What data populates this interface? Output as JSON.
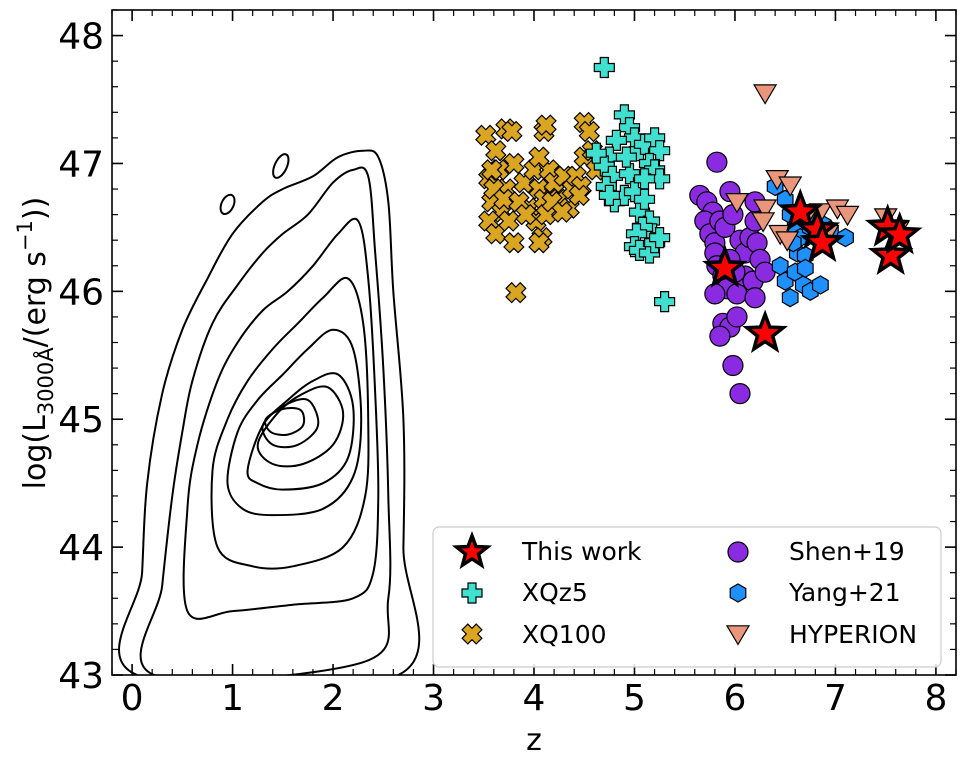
{
  "chart_data": {
    "type": "scatter",
    "xlabel": "z",
    "ylabel": {
      "prefix": "log(L",
      "sub": "3000Å",
      "middle": "/(erg s",
      "sup": "−1",
      "suffix": "))"
    },
    "xlim": [
      -0.2,
      8.2
    ],
    "ylim": [
      43,
      48.2
    ],
    "xticks": [
      0,
      1,
      2,
      3,
      4,
      5,
      6,
      7,
      8
    ],
    "yticks": [
      43,
      44,
      45,
      46,
      47,
      48
    ],
    "grid": false,
    "legend_position": "lower-right",
    "legend_columns": 2,
    "legend": [
      {
        "label": "This work",
        "marker": "star",
        "color": "#ff0000"
      },
      {
        "label": "XQz5",
        "marker": "plus",
        "color": "#40e0d0"
      },
      {
        "label": "XQ100",
        "marker": "x",
        "color": "#daa520"
      },
      {
        "label": "Shen+19",
        "marker": "circle",
        "color": "#8a2be2"
      },
      {
        "label": "Yang+21",
        "marker": "hexagon",
        "color": "#1e90ff"
      },
      {
        "label": "HYPERION",
        "marker": "triangle-down",
        "color": "#e9967a"
      }
    ],
    "density_contours": {
      "description": "low-z quasar density contours",
      "levels": [
        [
          [
            0.05,
            43.0
          ],
          [
            0.1,
            43.8
          ],
          [
            0.15,
            44.5
          ],
          [
            0.3,
            45.2
          ],
          [
            0.5,
            45.7
          ],
          [
            0.75,
            46.1
          ],
          [
            1.0,
            46.45
          ],
          [
            1.3,
            46.7
          ],
          [
            1.5,
            46.8
          ],
          [
            1.8,
            46.9
          ],
          [
            2.05,
            47.05
          ],
          [
            2.3,
            47.1
          ],
          [
            2.45,
            47.05
          ],
          [
            2.55,
            46.7
          ],
          [
            2.6,
            46.0
          ],
          [
            2.7,
            45.0
          ],
          [
            2.7,
            44.0
          ],
          [
            2.65,
            43.0
          ]
        ],
        [
          [
            0.22,
            43.0
          ],
          [
            0.3,
            43.7
          ],
          [
            0.4,
            44.4
          ],
          [
            0.5,
            44.9
          ],
          [
            0.6,
            45.3
          ],
          [
            0.8,
            45.75
          ],
          [
            1.05,
            46.05
          ],
          [
            1.3,
            46.3
          ],
          [
            1.5,
            46.45
          ],
          [
            1.75,
            46.6
          ],
          [
            2.0,
            46.85
          ],
          [
            2.2,
            46.95
          ],
          [
            2.35,
            46.9
          ],
          [
            2.42,
            46.3
          ],
          [
            2.5,
            45.4
          ],
          [
            2.55,
            44.4
          ],
          [
            2.55,
            43.6
          ],
          [
            2.3,
            43.1
          ]
        ],
        [
          [
            0.55,
            43.5
          ],
          [
            0.55,
            44.3
          ],
          [
            0.65,
            44.8
          ],
          [
            0.85,
            45.3
          ],
          [
            1.05,
            45.6
          ],
          [
            1.3,
            45.85
          ],
          [
            1.55,
            46.0
          ],
          [
            1.8,
            46.2
          ],
          [
            2.05,
            46.45
          ],
          [
            2.25,
            46.55
          ],
          [
            2.35,
            46.1
          ],
          [
            2.42,
            45.2
          ],
          [
            2.45,
            44.4
          ],
          [
            2.4,
            43.8
          ],
          [
            2.2,
            43.6
          ],
          [
            1.6,
            43.55
          ],
          [
            1.0,
            43.5
          ]
        ],
        [
          [
            0.85,
            44.0
          ],
          [
            0.8,
            44.6
          ],
          [
            0.95,
            45.0
          ],
          [
            1.15,
            45.3
          ],
          [
            1.4,
            45.55
          ],
          [
            1.65,
            45.75
          ],
          [
            1.9,
            45.95
          ],
          [
            2.15,
            46.1
          ],
          [
            2.3,
            45.75
          ],
          [
            2.35,
            45.0
          ],
          [
            2.32,
            44.4
          ],
          [
            2.1,
            44.0
          ],
          [
            1.6,
            43.85
          ],
          [
            1.2,
            43.85
          ]
        ],
        [
          [
            0.95,
            44.5
          ],
          [
            1.05,
            44.9
          ],
          [
            1.25,
            45.15
          ],
          [
            1.5,
            45.35
          ],
          [
            1.75,
            45.55
          ],
          [
            2.0,
            45.7
          ],
          [
            2.2,
            45.55
          ],
          [
            2.28,
            45.0
          ],
          [
            2.2,
            44.55
          ],
          [
            1.9,
            44.3
          ],
          [
            1.4,
            44.25
          ],
          [
            1.1,
            44.3
          ]
        ],
        [
          [
            1.15,
            44.6
          ],
          [
            1.3,
            44.95
          ],
          [
            1.55,
            45.15
          ],
          [
            1.8,
            45.3
          ],
          [
            2.05,
            45.35
          ],
          [
            2.2,
            45.1
          ],
          [
            2.15,
            44.7
          ],
          [
            1.9,
            44.5
          ],
          [
            1.5,
            44.45
          ],
          [
            1.25,
            44.5
          ]
        ],
        [
          [
            1.25,
            44.8
          ],
          [
            1.45,
            45.05
          ],
          [
            1.7,
            45.2
          ],
          [
            1.95,
            45.25
          ],
          [
            2.1,
            45.05
          ],
          [
            2.0,
            44.8
          ],
          [
            1.7,
            44.65
          ],
          [
            1.4,
            44.65
          ]
        ],
        [
          [
            1.3,
            44.95
          ],
          [
            1.5,
            45.1
          ],
          [
            1.75,
            45.15
          ],
          [
            1.85,
            44.95
          ],
          [
            1.65,
            44.8
          ],
          [
            1.4,
            44.8
          ]
        ],
        [
          [
            1.33,
            45.0
          ],
          [
            1.5,
            45.08
          ],
          [
            1.68,
            45.07
          ],
          [
            1.7,
            44.95
          ],
          [
            1.55,
            44.88
          ],
          [
            1.38,
            44.9
          ]
        ]
      ],
      "islands": [
        {
          "x": 0.95,
          "y": 46.68,
          "rx": 0.06,
          "ry": 0.08
        },
        {
          "x": 1.48,
          "y": 46.98,
          "rx": 0.06,
          "ry": 0.1
        }
      ]
    },
    "series": [
      {
        "name": "XQ100",
        "marker": "x",
        "color": "#daa520",
        "points": [
          [
            3.52,
            47.22
          ],
          [
            3.62,
            47.1
          ],
          [
            3.72,
            47.27
          ],
          [
            3.78,
            47.25
          ],
          [
            3.8,
            47.0
          ],
          [
            3.55,
            46.88
          ],
          [
            3.65,
            46.95
          ],
          [
            3.72,
            46.8
          ],
          [
            3.58,
            46.7
          ],
          [
            3.68,
            46.62
          ],
          [
            3.55,
            46.55
          ],
          [
            3.62,
            46.45
          ],
          [
            3.75,
            46.55
          ],
          [
            3.8,
            46.38
          ],
          [
            3.9,
            46.85
          ],
          [
            3.95,
            46.65
          ],
          [
            4.0,
            46.95
          ],
          [
            4.05,
            46.8
          ],
          [
            4.1,
            46.72
          ],
          [
            4.02,
            46.55
          ],
          [
            4.08,
            46.42
          ],
          [
            4.12,
            46.6
          ],
          [
            4.15,
            46.95
          ],
          [
            4.2,
            46.85
          ],
          [
            4.1,
            47.25
          ],
          [
            4.12,
            47.3
          ],
          [
            4.25,
            46.72
          ],
          [
            4.3,
            46.9
          ],
          [
            4.35,
            46.65
          ],
          [
            4.38,
            46.8
          ],
          [
            4.42,
            46.9
          ],
          [
            4.47,
            46.82
          ],
          [
            4.5,
            47.05
          ],
          [
            4.5,
            47.32
          ],
          [
            4.55,
            47.25
          ],
          [
            4.58,
            47.1
          ],
          [
            4.62,
            46.95
          ],
          [
            3.82,
            45.99
          ],
          [
            4.05,
            46.38
          ],
          [
            3.6,
            46.8
          ],
          [
            3.7,
            46.72
          ],
          [
            3.85,
            46.7
          ],
          [
            3.92,
            46.6
          ],
          [
            4.18,
            46.7
          ],
          [
            4.28,
            46.62
          ],
          [
            3.58,
            46.95
          ],
          [
            4.45,
            46.75
          ],
          [
            4.05,
            47.05
          ]
        ]
      },
      {
        "name": "XQz5",
        "marker": "plus",
        "color": "#40e0d0",
        "points": [
          [
            4.7,
            47.75
          ],
          [
            4.9,
            47.38
          ],
          [
            4.95,
            47.28
          ],
          [
            5.0,
            47.2
          ],
          [
            5.05,
            47.1
          ],
          [
            5.1,
            47.15
          ],
          [
            5.2,
            47.2
          ],
          [
            5.25,
            47.1
          ],
          [
            5.15,
            47.0
          ],
          [
            5.2,
            46.95
          ],
          [
            5.25,
            46.88
          ],
          [
            4.82,
            47.18
          ],
          [
            4.75,
            47.05
          ],
          [
            4.7,
            46.98
          ],
          [
            4.78,
            46.9
          ],
          [
            4.72,
            46.82
          ],
          [
            4.8,
            46.7
          ],
          [
            4.9,
            46.75
          ],
          [
            4.95,
            46.92
          ],
          [
            5.0,
            46.78
          ],
          [
            5.05,
            46.62
          ],
          [
            5.1,
            46.72
          ],
          [
            5.15,
            46.55
          ],
          [
            5.18,
            46.45
          ],
          [
            5.08,
            46.5
          ],
          [
            5.02,
            46.45
          ],
          [
            5.0,
            46.35
          ],
          [
            5.05,
            46.32
          ],
          [
            5.15,
            46.3
          ],
          [
            5.2,
            46.38
          ],
          [
            5.25,
            46.42
          ],
          [
            5.3,
            45.92
          ],
          [
            4.75,
            46.75
          ],
          [
            4.62,
            47.08
          ],
          [
            5.1,
            46.88
          ],
          [
            4.92,
            47.05
          ]
        ]
      },
      {
        "name": "Shen+19",
        "marker": "circle",
        "color": "#8a2be2",
        "points": [
          [
            5.82,
            47.01
          ],
          [
            5.65,
            46.75
          ],
          [
            5.72,
            46.7
          ],
          [
            5.78,
            46.62
          ],
          [
            5.7,
            46.55
          ],
          [
            5.75,
            46.45
          ],
          [
            5.8,
            46.38
          ],
          [
            5.85,
            46.55
          ],
          [
            5.9,
            46.5
          ],
          [
            5.95,
            46.78
          ],
          [
            5.98,
            46.6
          ],
          [
            6.05,
            46.4
          ],
          [
            6.1,
            46.3
          ],
          [
            6.15,
            46.42
          ],
          [
            6.2,
            46.55
          ],
          [
            6.22,
            46.38
          ],
          [
            6.25,
            46.25
          ],
          [
            5.8,
            46.3
          ],
          [
            5.82,
            46.2
          ],
          [
            5.88,
            46.12
          ],
          [
            5.92,
            46.02
          ],
          [
            5.8,
            45.98
          ],
          [
            6.02,
            45.98
          ],
          [
            6.1,
            46.12
          ],
          [
            6.18,
            46.08
          ],
          [
            6.2,
            45.95
          ],
          [
            5.88,
            45.75
          ],
          [
            5.95,
            45.72
          ],
          [
            5.85,
            45.65
          ],
          [
            6.02,
            45.8
          ],
          [
            5.98,
            45.42
          ],
          [
            6.05,
            45.2
          ],
          [
            6.2,
            46.7
          ],
          [
            6.3,
            46.15
          ],
          [
            5.95,
            46.25
          ],
          [
            6.0,
            46.15
          ]
        ]
      },
      {
        "name": "Yang+21",
        "marker": "hexagon",
        "color": "#1e90ff",
        "points": [
          [
            6.4,
            46.82
          ],
          [
            6.5,
            46.72
          ],
          [
            6.55,
            46.6
          ],
          [
            6.6,
            46.5
          ],
          [
            6.65,
            46.42
          ],
          [
            6.62,
            46.3
          ],
          [
            6.7,
            46.28
          ],
          [
            6.75,
            46.5
          ],
          [
            6.8,
            46.55
          ],
          [
            6.88,
            46.52
          ],
          [
            6.95,
            46.48
          ],
          [
            7.1,
            46.42
          ],
          [
            6.45,
            46.2
          ],
          [
            6.5,
            46.08
          ],
          [
            6.55,
            45.95
          ],
          [
            6.6,
            46.15
          ],
          [
            6.68,
            46.05
          ],
          [
            6.75,
            46.0
          ],
          [
            6.85,
            46.05
          ],
          [
            6.7,
            46.18
          ],
          [
            6.58,
            46.38
          ]
        ]
      },
      {
        "name": "HYPERION",
        "marker": "triangle-down",
        "color": "#e9967a",
        "points": [
          [
            6.3,
            47.55
          ],
          [
            6.42,
            46.88
          ],
          [
            6.55,
            46.83
          ],
          [
            6.02,
            46.7
          ],
          [
            6.3,
            46.65
          ],
          [
            6.28,
            46.55
          ],
          [
            6.45,
            46.45
          ],
          [
            6.52,
            46.4
          ],
          [
            6.72,
            46.6
          ],
          [
            6.85,
            46.62
          ],
          [
            7.02,
            46.65
          ],
          [
            7.12,
            46.6
          ],
          [
            6.92,
            46.45
          ],
          [
            7.5,
            46.58
          ],
          [
            7.62,
            46.48
          ]
        ]
      },
      {
        "name": "This work",
        "marker": "star",
        "color": "#ff0000",
        "points": [
          [
            5.9,
            46.18
          ],
          [
            6.3,
            45.67
          ],
          [
            6.65,
            46.62
          ],
          [
            6.82,
            46.48
          ],
          [
            6.87,
            46.38
          ],
          [
            7.52,
            46.5
          ],
          [
            7.55,
            46.28
          ],
          [
            7.64,
            46.44
          ]
        ]
      }
    ]
  }
}
